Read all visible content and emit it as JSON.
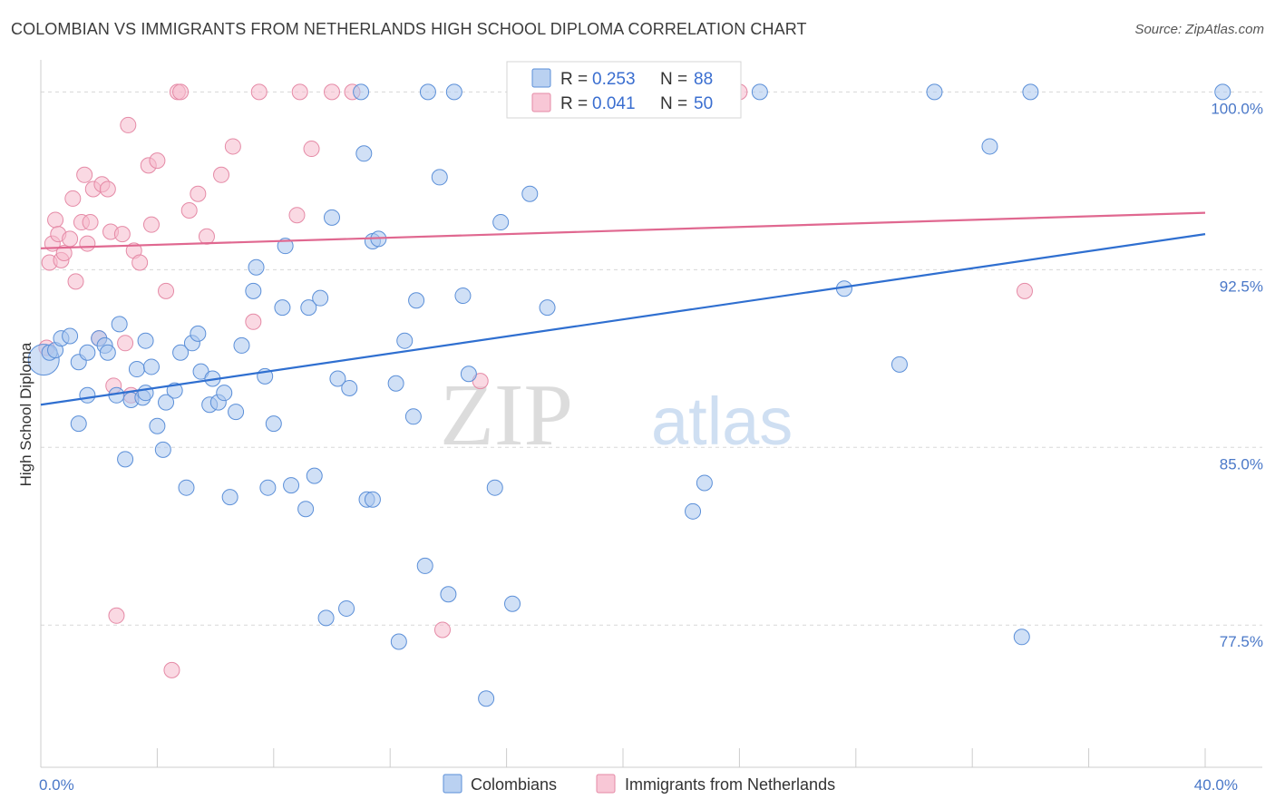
{
  "header": {
    "title": "COLOMBIAN VS IMMIGRANTS FROM NETHERLANDS HIGH SCHOOL DIPLOMA CORRELATION CHART",
    "source": "Source: ZipAtlas.com"
  },
  "watermark": {
    "zip": "ZIP",
    "atlas": "atlas"
  },
  "colors": {
    "blue_fill": "#a9c6ee",
    "blue_stroke": "#5b8fd8",
    "blue_line": "#2f6fd0",
    "pink_fill": "#f6b9cc",
    "pink_stroke": "#e58aa6",
    "pink_line": "#e06890",
    "grid": "#d8d8d8",
    "axis": "#cccccc",
    "tick_text": "#4a78c8"
  },
  "legend": {
    "rows": [
      {
        "r_label": "R =",
        "r_value": "0.253",
        "n_label": "N =",
        "n_value": "88",
        "series": "blue"
      },
      {
        "r_label": "R =",
        "r_value": "0.041",
        "n_label": "N =",
        "n_value": "50",
        "series": "pink"
      }
    ]
  },
  "chart_data": {
    "type": "scatter",
    "title": "COLOMBIAN VS IMMIGRANTS FROM NETHERLANDS HIGH SCHOOL DIPLOMA CORRELATION CHART",
    "xlabel": "",
    "ylabel": "High School Diploma",
    "xlim": [
      0,
      40
    ],
    "ylim": [
      71.5,
      101.2
    ],
    "x_tick_labels": [
      {
        "value": 0,
        "label": "0.0%"
      },
      {
        "value": 40,
        "label": "40.0%"
      }
    ],
    "x_minor_ticks": [
      0,
      4,
      8,
      12,
      16,
      20,
      24,
      28,
      32,
      36,
      40
    ],
    "y_ticks": [
      {
        "value": 100,
        "label": "100.0%"
      },
      {
        "value": 92.5,
        "label": "92.5%"
      },
      {
        "value": 85,
        "label": "85.0%"
      },
      {
        "value": 77.5,
        "label": "77.5%"
      }
    ],
    "series": [
      {
        "name": "Colombians",
        "color": "blue",
        "r": 0.253,
        "n": 88,
        "trend": {
          "x": [
            0,
            40
          ],
          "y": [
            86.8,
            94.0
          ]
        },
        "points": [
          [
            0.1,
            88.7
          ],
          [
            0.3,
            89.0
          ],
          [
            0.5,
            89.1
          ],
          [
            0.7,
            89.6
          ],
          [
            1.0,
            89.7
          ],
          [
            1.3,
            88.6
          ],
          [
            1.6,
            87.2
          ],
          [
            1.3,
            86.0
          ],
          [
            2.0,
            89.6
          ],
          [
            2.2,
            89.3
          ],
          [
            2.3,
            89.0
          ],
          [
            2.6,
            87.2
          ],
          [
            2.7,
            90.2
          ],
          [
            2.9,
            84.5
          ],
          [
            3.1,
            87.0
          ],
          [
            3.3,
            88.3
          ],
          [
            3.5,
            87.1
          ],
          [
            3.6,
            89.5
          ],
          [
            3.8,
            88.4
          ],
          [
            4.0,
            85.9
          ],
          [
            4.2,
            84.9
          ],
          [
            4.3,
            86.9
          ],
          [
            4.6,
            87.4
          ],
          [
            4.8,
            89.0
          ],
          [
            5.0,
            83.3
          ],
          [
            5.2,
            89.4
          ],
          [
            5.4,
            89.8
          ],
          [
            5.5,
            88.2
          ],
          [
            5.8,
            86.8
          ],
          [
            5.9,
            87.9
          ],
          [
            6.1,
            86.9
          ],
          [
            6.3,
            87.3
          ],
          [
            6.5,
            82.9
          ],
          [
            6.7,
            86.5
          ],
          [
            6.9,
            89.3
          ],
          [
            7.3,
            91.6
          ],
          [
            7.4,
            92.6
          ],
          [
            7.7,
            88.0
          ],
          [
            7.8,
            83.3
          ],
          [
            8.0,
            86.0
          ],
          [
            8.3,
            90.9
          ],
          [
            8.4,
            93.5
          ],
          [
            8.6,
            83.4
          ],
          [
            9.1,
            82.4
          ],
          [
            9.2,
            90.9
          ],
          [
            9.4,
            83.8
          ],
          [
            9.6,
            91.3
          ],
          [
            10.0,
            94.7
          ],
          [
            10.2,
            87.9
          ],
          [
            10.6,
            87.5
          ],
          [
            11.0,
            100.0
          ],
          [
            11.1,
            97.4
          ],
          [
            11.2,
            82.8
          ],
          [
            11.4,
            93.7
          ],
          [
            11.4,
            82.8
          ],
          [
            11.6,
            93.8
          ],
          [
            12.2,
            87.7
          ],
          [
            12.5,
            89.5
          ],
          [
            12.8,
            86.3
          ],
          [
            12.9,
            91.2
          ],
          [
            13.2,
            80.0
          ],
          [
            13.3,
            100.0
          ],
          [
            13.7,
            96.4
          ],
          [
            14.0,
            78.8
          ],
          [
            14.2,
            100.0
          ],
          [
            14.5,
            91.4
          ],
          [
            14.7,
            88.1
          ],
          [
            15.3,
            74.4
          ],
          [
            15.6,
            83.3
          ],
          [
            15.8,
            94.5
          ],
          [
            16.2,
            78.4
          ],
          [
            16.8,
            95.7
          ],
          [
            17.4,
            90.9
          ],
          [
            9.8,
            77.8
          ],
          [
            10.5,
            78.2
          ],
          [
            12.3,
            76.8
          ],
          [
            22.4,
            82.3
          ],
          [
            22.8,
            83.5
          ],
          [
            24.7,
            100.0
          ],
          [
            27.6,
            91.7
          ],
          [
            29.5,
            88.5
          ],
          [
            30.7,
            100.0
          ],
          [
            32.6,
            97.7
          ],
          [
            33.7,
            77.0
          ],
          [
            34.0,
            100.0
          ],
          [
            40.6,
            100.0
          ],
          [
            1.6,
            89.0
          ],
          [
            3.6,
            87.3
          ]
        ]
      },
      {
        "name": "Immigrants from Netherlands",
        "color": "pink",
        "r": 0.041,
        "n": 50,
        "trend": {
          "x": [
            0,
            40
          ],
          "y": [
            93.4,
            94.9
          ]
        },
        "points": [
          [
            0.2,
            89.2
          ],
          [
            0.3,
            92.8
          ],
          [
            0.4,
            93.6
          ],
          [
            0.5,
            94.6
          ],
          [
            0.6,
            94.0
          ],
          [
            0.7,
            92.9
          ],
          [
            0.8,
            93.2
          ],
          [
            1.0,
            93.8
          ],
          [
            1.1,
            95.5
          ],
          [
            1.2,
            92.0
          ],
          [
            1.4,
            94.5
          ],
          [
            1.5,
            96.5
          ],
          [
            1.6,
            93.6
          ],
          [
            1.7,
            94.5
          ],
          [
            1.8,
            95.9
          ],
          [
            2.0,
            89.6
          ],
          [
            2.1,
            96.1
          ],
          [
            2.3,
            95.9
          ],
          [
            2.4,
            94.1
          ],
          [
            2.5,
            87.6
          ],
          [
            2.6,
            77.9
          ],
          [
            2.8,
            94.0
          ],
          [
            2.9,
            89.4
          ],
          [
            3.0,
            98.6
          ],
          [
            3.1,
            87.2
          ],
          [
            3.2,
            93.3
          ],
          [
            3.4,
            92.8
          ],
          [
            3.7,
            96.9
          ],
          [
            3.8,
            94.4
          ],
          [
            4.0,
            97.1
          ],
          [
            4.3,
            91.6
          ],
          [
            4.5,
            75.6
          ],
          [
            4.7,
            100.0
          ],
          [
            4.8,
            100.0
          ],
          [
            5.1,
            95.0
          ],
          [
            5.4,
            95.7
          ],
          [
            5.7,
            93.9
          ],
          [
            6.2,
            96.5
          ],
          [
            6.6,
            97.7
          ],
          [
            7.3,
            90.3
          ],
          [
            7.5,
            100.0
          ],
          [
            8.8,
            94.8
          ],
          [
            8.9,
            100.0
          ],
          [
            9.3,
            97.6
          ],
          [
            10.0,
            100.0
          ],
          [
            10.7,
            100.0
          ],
          [
            13.8,
            77.3
          ],
          [
            15.1,
            87.8
          ],
          [
            24.0,
            100.0
          ],
          [
            33.8,
            91.6
          ]
        ]
      }
    ]
  },
  "bottom_legend": {
    "items": [
      {
        "label": "Colombians",
        "color": "blue"
      },
      {
        "label": "Immigrants from Netherlands",
        "color": "pink"
      }
    ]
  }
}
